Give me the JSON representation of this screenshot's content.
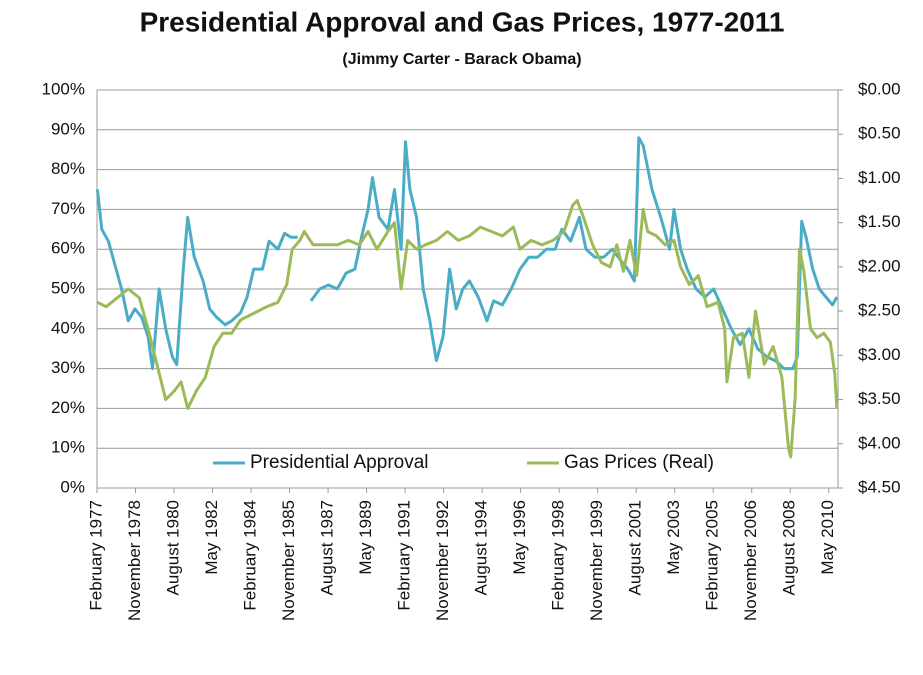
{
  "chart_data": {
    "type": "line",
    "title": "Presidential Approval and Gas Prices, 1977-2011",
    "subtitle": "(Jimmy Carter - Barack Obama)",
    "grid": true,
    "legend": "bottom",
    "xlim": [
      1977.08,
      2010.75
    ],
    "xticks": [
      {
        "value": 1977.08,
        "label": "February 1977"
      },
      {
        "value": 1978.83,
        "label": "November 1978"
      },
      {
        "value": 1980.58,
        "label": "August 1980"
      },
      {
        "value": 1982.33,
        "label": "May 1982"
      },
      {
        "value": 1984.08,
        "label": "February 1984"
      },
      {
        "value": 1985.83,
        "label": "November 1985"
      },
      {
        "value": 1987.58,
        "label": "August 1987"
      },
      {
        "value": 1989.33,
        "label": "May 1989"
      },
      {
        "value": 1991.08,
        "label": "February 1991"
      },
      {
        "value": 1992.83,
        "label": "November 1992"
      },
      {
        "value": 1994.58,
        "label": "August 1994"
      },
      {
        "value": 1996.33,
        "label": "May 1996"
      },
      {
        "value": 1998.08,
        "label": "February 1998"
      },
      {
        "value": 1999.83,
        "label": "November 1999"
      },
      {
        "value": 2001.58,
        "label": "August 2001"
      },
      {
        "value": 2003.33,
        "label": "May 2003"
      },
      {
        "value": 2005.08,
        "label": "February 2005"
      },
      {
        "value": 2006.83,
        "label": "November 2006"
      },
      {
        "value": 2008.58,
        "label": "August 2008"
      },
      {
        "value": 2010.33,
        "label": "May 2010"
      }
    ],
    "ylim": [
      0,
      100
    ],
    "yticks": [
      {
        "value": 0,
        "label": "0%"
      },
      {
        "value": 10,
        "label": "10%"
      },
      {
        "value": 20,
        "label": "20%"
      },
      {
        "value": 30,
        "label": "30%"
      },
      {
        "value": 40,
        "label": "40%"
      },
      {
        "value": 50,
        "label": "50%"
      },
      {
        "value": 60,
        "label": "60%"
      },
      {
        "value": 70,
        "label": "70%"
      },
      {
        "value": 80,
        "label": "80%"
      },
      {
        "value": 90,
        "label": "90%"
      },
      {
        "value": 100,
        "label": "100%"
      }
    ],
    "y2lim": [
      4.5,
      0
    ],
    "y2ticks": [
      {
        "value": 0,
        "label": "$0.00"
      },
      {
        "value": 0.5,
        "label": "$0.50"
      },
      {
        "value": 1,
        "label": "$1.00"
      },
      {
        "value": 1.5,
        "label": "$1.50"
      },
      {
        "value": 2,
        "label": "$2.00"
      },
      {
        "value": 2.5,
        "label": "$2.50"
      },
      {
        "value": 3,
        "label": "$3.00"
      },
      {
        "value": 3.5,
        "label": "$3.50"
      },
      {
        "value": 4,
        "label": "$4.00"
      },
      {
        "value": 4.5,
        "label": "$4.50"
      }
    ],
    "series": [
      {
        "name": "Presidential Approval",
        "color": "#4bacc6",
        "axis": "y",
        "x": [
          1977.1,
          1977.3,
          1977.6,
          1977.9,
          1978.2,
          1978.5,
          1978.8,
          1979.1,
          1979.4,
          1979.6,
          1979.9,
          1980.2,
          1980.5,
          1980.7,
          1981.0,
          1981.2,
          1981.5,
          1981.9,
          1982.2,
          1982.5,
          1982.9,
          1983.2,
          1983.6,
          1983.9,
          1984.2,
          1984.6,
          1984.9,
          1985.3,
          1985.6,
          1985.9,
          1986.2,
          1986.5,
          1986.8,
          1987.2,
          1987.6,
          1988.0,
          1988.4,
          1988.8,
          1989.1,
          1989.4,
          1989.6,
          1989.9,
          1990.3,
          1990.6,
          1990.9,
          1991.1,
          1991.3,
          1991.6,
          1991.9,
          1992.2,
          1992.5,
          1992.8,
          1993.1,
          1993.4,
          1993.7,
          1994.0,
          1994.4,
          1994.8,
          1995.1,
          1995.5,
          1995.9,
          1996.3,
          1996.7,
          1997.1,
          1997.5,
          1997.9,
          1998.2,
          1998.6,
          1999.0,
          1999.3,
          1999.7,
          2000.1,
          2000.5,
          2000.9,
          2001.2,
          2001.5,
          2001.7,
          2001.9,
          2002.3,
          2002.7,
          2003.1,
          2003.3,
          2003.6,
          2003.9,
          2004.3,
          2004.7,
          2005.1,
          2005.5,
          2005.9,
          2006.3,
          2006.7,
          2007.1,
          2007.5,
          2007.9,
          2008.3,
          2008.7,
          2008.9,
          2009.1,
          2009.3,
          2009.6,
          2009.9,
          2010.2,
          2010.5,
          2010.7
        ],
        "values": [
          75,
          65,
          62,
          56,
          50,
          42,
          45,
          43,
          38,
          30,
          50,
          40,
          33,
          31,
          55,
          68,
          58,
          52,
          45,
          43,
          41,
          42,
          44,
          48,
          55,
          55,
          62,
          60,
          64,
          63,
          63,
          null,
          47,
          50,
          51,
          50,
          54,
          55,
          63,
          70,
          78,
          68,
          65,
          75,
          60,
          87,
          75,
          68,
          50,
          42,
          32,
          38,
          55,
          45,
          50,
          52,
          48,
          42,
          47,
          46,
          50,
          55,
          58,
          58,
          60,
          60,
          65,
          62,
          68,
          60,
          58,
          58,
          60,
          57,
          55,
          52,
          88,
          86,
          75,
          68,
          60,
          70,
          60,
          55,
          50,
          48,
          50,
          45,
          40,
          36,
          40,
          35,
          33,
          32,
          30,
          30,
          33,
          67,
          63,
          55,
          50,
          48,
          46,
          48
        ]
      },
      {
        "name": "Gas Prices (Real)",
        "color": "#9bbb59",
        "axis": "y2",
        "x": [
          1977.1,
          1977.5,
          1978.0,
          1978.5,
          1979.0,
          1979.4,
          1979.8,
          1980.2,
          1980.6,
          1980.9,
          1981.2,
          1981.6,
          1982.0,
          1982.4,
          1982.8,
          1983.2,
          1983.6,
          1984.0,
          1984.4,
          1984.8,
          1985.3,
          1985.7,
          1985.95,
          1986.3,
          1986.5,
          1986.9,
          1987.5,
          1988.0,
          1988.5,
          1989.0,
          1989.4,
          1989.8,
          1990.3,
          1990.6,
          1990.9,
          1991.2,
          1991.6,
          1992.0,
          1992.5,
          1993.0,
          1993.5,
          1994.0,
          1994.5,
          1995.0,
          1995.5,
          1996.0,
          1996.3,
          1996.8,
          1997.3,
          1997.8,
          1998.3,
          1998.7,
          1998.9,
          1999.2,
          1999.6,
          2000.0,
          2000.4,
          2000.7,
          2001.0,
          2001.3,
          2001.6,
          2001.9,
          2002.1,
          2002.5,
          2002.9,
          2003.3,
          2003.6,
          2004.0,
          2004.4,
          2004.8,
          2005.3,
          2005.6,
          2005.7,
          2006.0,
          2006.4,
          2006.7,
          2007.0,
          2007.4,
          2007.8,
          2008.2,
          2008.5,
          2008.6,
          2008.8,
          2009.0,
          2009.2,
          2009.5,
          2009.8,
          2010.1,
          2010.4,
          2010.6,
          2010.7
        ],
        "values": [
          2.4,
          2.45,
          2.35,
          2.25,
          2.35,
          2.7,
          3.1,
          3.5,
          3.4,
          3.3,
          3.6,
          3.4,
          3.25,
          2.9,
          2.75,
          2.75,
          2.6,
          2.55,
          2.5,
          2.45,
          2.4,
          2.2,
          1.8,
          1.7,
          1.6,
          1.75,
          1.75,
          1.75,
          1.7,
          1.75,
          1.6,
          1.8,
          1.6,
          1.5,
          2.25,
          1.7,
          1.8,
          1.75,
          1.7,
          1.6,
          1.7,
          1.65,
          1.55,
          1.6,
          1.65,
          1.55,
          1.8,
          1.7,
          1.75,
          1.7,
          1.6,
          1.3,
          1.25,
          1.45,
          1.75,
          1.95,
          2.0,
          1.75,
          2.05,
          1.7,
          2.1,
          1.35,
          1.6,
          1.65,
          1.75,
          1.7,
          2.0,
          2.2,
          2.1,
          2.45,
          2.4,
          2.7,
          3.3,
          2.8,
          2.75,
          3.25,
          2.5,
          3.1,
          2.9,
          3.25,
          4.05,
          4.15,
          3.5,
          1.8,
          2.05,
          2.7,
          2.8,
          2.75,
          2.85,
          3.2,
          3.6
        ]
      }
    ]
  }
}
